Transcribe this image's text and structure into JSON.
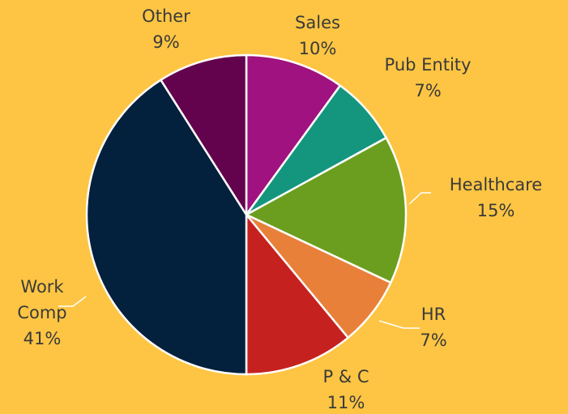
{
  "chart_data": {
    "type": "pie",
    "categories": [
      "Sales",
      "Pub Entity",
      "Healthcare",
      "HR",
      "P & C",
      "Work Comp",
      "Other"
    ],
    "values": [
      10,
      7,
      15,
      7,
      11,
      41,
      9
    ],
    "value_labels": [
      "10%",
      "7%",
      "15%",
      "7%",
      "11%",
      "41%",
      "9%"
    ],
    "colors": [
      "#a0127f",
      "#14967e",
      "#6b9e1f",
      "#e8803a",
      "#c5221f",
      "#03203d",
      "#64034d"
    ]
  }
}
